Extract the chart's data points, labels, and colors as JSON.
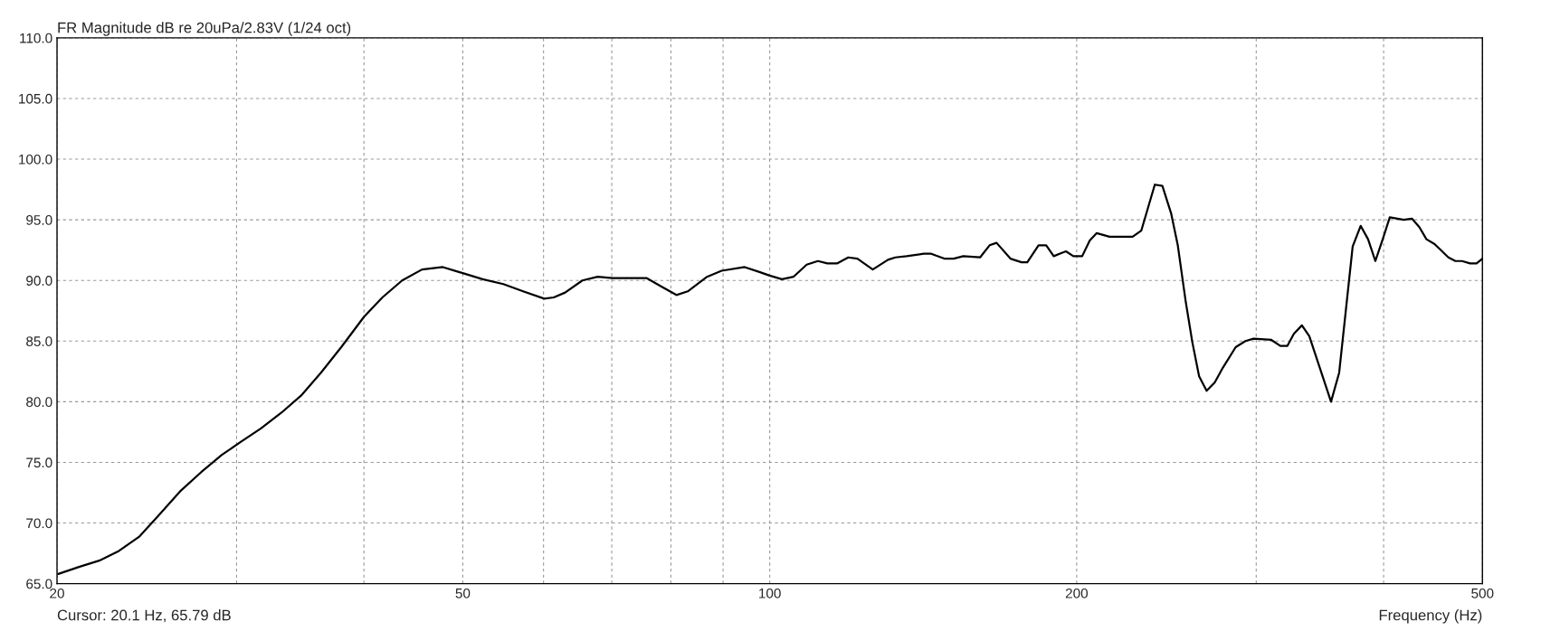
{
  "chart_data": {
    "type": "line",
    "title": "FR Magnitude dB re 20uPa/2.83V (1/24 oct)",
    "xlabel": "Frequency (Hz)",
    "annotations": [
      "Cursor: 20.1 Hz, 65.79 dB"
    ],
    "log": "x",
    "grid": true,
    "marker": "none",
    "line_style": "solid",
    "xlim": [
      20,
      500
    ],
    "xticks": [
      20,
      {
        "value": 30,
        "label": null
      },
      {
        "value": 40,
        "label": null
      },
      50,
      {
        "value": 60,
        "label": null
      },
      {
        "value": 70,
        "label": null
      },
      {
        "value": 80,
        "label": null
      },
      {
        "value": 90,
        "label": null
      },
      100,
      200,
      {
        "value": 300,
        "label": null
      },
      {
        "value": 400,
        "label": null
      },
      500
    ],
    "ylim": [
      65,
      110
    ],
    "yticks": [
      {
        "value": 65,
        "label": "65.0"
      },
      {
        "value": 70,
        "label": "70.0"
      },
      {
        "value": 75,
        "label": "75.0"
      },
      {
        "value": 80,
        "label": "80.0"
      },
      {
        "value": 85,
        "label": "85.0"
      },
      {
        "value": 90,
        "label": "90.0"
      },
      {
        "value": 95,
        "label": "95.0"
      },
      {
        "value": 100,
        "label": "100.0"
      },
      {
        "value": 105,
        "label": "105.0"
      },
      {
        "value": 110,
        "label": "110.0"
      }
    ],
    "series": [
      {
        "color": "#000000",
        "x": [
          20.06,
          21.05,
          22.0,
          23.0,
          24.1,
          25.2,
          26.4,
          27.7,
          29.0,
          30.3,
          31.7,
          33.2,
          34.7,
          36.3,
          38.0,
          40.0,
          41.7,
          43.6,
          45.6,
          47.8,
          50.0,
          52.3,
          54.8,
          57.3,
          60.1,
          61.4,
          63.0,
          65.5,
          67.8,
          70.1,
          73.8,
          75.7,
          78.3,
          81.0,
          83.1,
          86.8,
          89.7,
          94.5,
          97.7,
          100.0,
          102.8,
          105.5,
          108.7,
          111.5,
          113.9,
          116.4,
          119.4,
          121.9,
          126.2,
          130.6,
          132.8,
          136.2,
          141.6,
          144.0,
          148.3,
          151.5,
          154.8,
          160.8,
          164.3,
          166.9,
          172.2,
          176.6,
          178.9,
          183.5,
          186.7,
          189.9,
          192.4,
          195.2,
          198.5,
          202.5,
          206.0,
          209.2,
          215.4,
          219.5,
          226.9,
          231.4,
          238.6,
          242.7,
          247.6,
          251.3,
          255.8,
          259.7,
          263.7,
          268.2,
          273.2,
          278.2,
          286.4,
          292.8,
          298.2,
          310.4,
          316.8,
          321.8,
          326.6,
          332.6,
          338.2,
          355.2,
          361.8,
          373.0,
          379.8,
          386.2,
          392.6,
          399.2,
          405.6,
          418.6,
          426.4,
          433.6,
          440.6,
          448.8,
          463.0,
          470.4,
          477.4,
          486.2,
          493.4,
          500
        ],
        "values": [
          65.8,
          66.4,
          66.9,
          67.7,
          68.9,
          70.7,
          72.6,
          74.2,
          75.6,
          76.7,
          77.8,
          79.1,
          80.5,
          82.4,
          84.5,
          87.0,
          88.6,
          90.0,
          90.9,
          91.1,
          90.6,
          90.1,
          89.7,
          89.1,
          88.5,
          88.6,
          89.0,
          90.0,
          90.3,
          90.2,
          90.2,
          90.2,
          89.5,
          88.8,
          89.1,
          90.3,
          90.8,
          91.1,
          90.7,
          90.4,
          90.1,
          90.3,
          91.3,
          91.6,
          91.4,
          91.4,
          91.9,
          91.8,
          90.9,
          91.7,
          91.9,
          92.0,
          92.2,
          92.2,
          91.8,
          91.8,
          92.0,
          91.9,
          92.9,
          93.1,
          91.8,
          91.5,
          91.5,
          92.9,
          92.9,
          92.0,
          92.2,
          92.4,
          92.0,
          92.0,
          93.3,
          93.9,
          93.6,
          93.6,
          93.6,
          94.1,
          97.9,
          97.8,
          95.5,
          92.9,
          88.3,
          84.9,
          82.1,
          80.9,
          81.6,
          82.8,
          84.5,
          85.0,
          85.2,
          85.1,
          84.6,
          84.6,
          85.6,
          86.3,
          85.4,
          80.0,
          82.4,
          92.8,
          94.5,
          93.4,
          91.6,
          93.4,
          95.2,
          95.0,
          95.1,
          94.4,
          93.4,
          93.0,
          91.9,
          91.6,
          91.6,
          91.4,
          91.4,
          91.8
        ]
      }
    ]
  }
}
